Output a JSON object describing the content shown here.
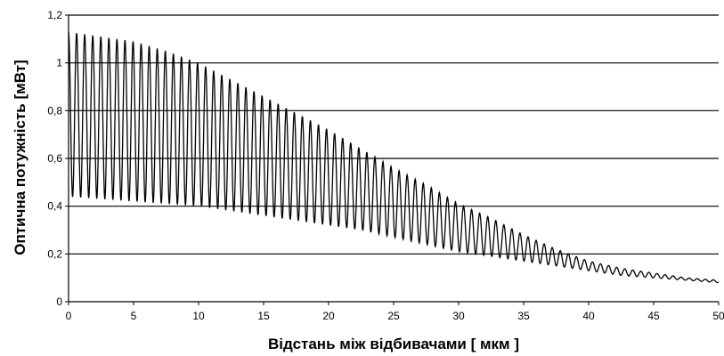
{
  "chart_data": {
    "type": "line",
    "title": "",
    "xlabel": "Відстань між відбивачами [ мкм ]",
    "ylabel": "Оптична потужність [мВт]",
    "xlim": [
      0,
      50
    ],
    "ylim": [
      0,
      1.2
    ],
    "x_ticks": [
      "0",
      "5",
      "10",
      "15",
      "20",
      "25",
      "30",
      "35",
      "40",
      "45",
      "50"
    ],
    "y_ticks": [
      "0",
      "0,2",
      "0,4",
      "0,6",
      "0,8",
      "1",
      "1,2"
    ],
    "y_gridlines": true,
    "legend": "none",
    "series": [
      {
        "color": "#000000",
        "oscillation_period_um": 0.62,
        "upper_envelope": {
          "x": [
            0,
            2.5,
            5,
            7.5,
            10,
            12.5,
            15,
            17.5,
            20,
            22.5,
            25,
            27.5,
            30,
            32.5,
            35,
            37.5,
            40,
            42.5,
            45,
            47.5,
            50
          ],
          "y": [
            1.13,
            1.11,
            1.09,
            1.05,
            1.0,
            0.93,
            0.86,
            0.79,
            0.72,
            0.64,
            0.56,
            0.49,
            0.41,
            0.35,
            0.28,
            0.22,
            0.17,
            0.14,
            0.12,
            0.1,
            0.09
          ]
        },
        "lower_envelope": {
          "x": [
            0,
            2.5,
            5,
            7.5,
            10,
            12.5,
            15,
            17.5,
            20,
            22.5,
            25,
            27.5,
            30,
            32.5,
            35,
            37.5,
            40,
            42.5,
            45,
            47.5,
            50
          ],
          "y": [
            0.44,
            0.43,
            0.42,
            0.41,
            0.4,
            0.38,
            0.36,
            0.34,
            0.32,
            0.3,
            0.27,
            0.24,
            0.21,
            0.19,
            0.17,
            0.15,
            0.13,
            0.11,
            0.1,
            0.09,
            0.08
          ]
        }
      }
    ]
  }
}
